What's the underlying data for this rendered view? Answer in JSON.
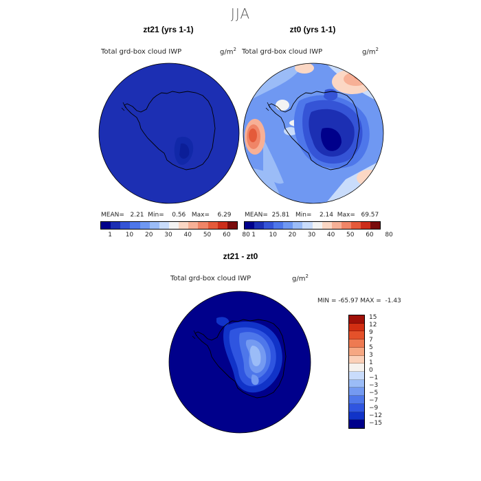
{
  "figure": {
    "season": "JJA"
  },
  "palette_main": [
    "#00008b",
    "#1c2fb3",
    "#3554d6",
    "#4e77ea",
    "#6f98f2",
    "#9bbcf7",
    "#c9dcfb",
    "#f3f3f3",
    "#fbd7c4",
    "#f7b096",
    "#f08567",
    "#e45a3a",
    "#cc2e1a",
    "#7a0c0c"
  ],
  "palette_diff": [
    "#00008b",
    "#1133c8",
    "#2f55e0",
    "#4e77ea",
    "#749af1",
    "#9bbcf7",
    "#c9dcfb",
    "#f6f2ee",
    "#fbd0b8",
    "#f6a782",
    "#ee7a52",
    "#e4512a",
    "#d22e12",
    "#a01008"
  ],
  "chart_data": [
    {
      "type": "heatmap",
      "panel": "zt21",
      "title": "zt21 (yrs 1-1)",
      "variable": "Total grd-box cloud IWP",
      "units": "g/m",
      "units_exp": "2",
      "stats": {
        "mean_label": "MEAN=",
        "mean": "2.21",
        "min_label": "Min=",
        "min": "0.56",
        "max_label": "Max=",
        "max": "6.29"
      },
      "colorbar_ticks": [
        "1",
        "10",
        "20",
        "30",
        "40",
        "50",
        "60",
        "80"
      ]
    },
    {
      "type": "heatmap",
      "panel": "zt0",
      "title": "zt0 (yrs 1-1)",
      "variable": "Total grd-box cloud IWP",
      "units": "g/m",
      "units_exp": "2",
      "stats": {
        "mean_label": "MEAN=",
        "mean": "25.81",
        "min_label": "Min=",
        "min": "2.14",
        "max_label": "Max=",
        "max": "69.57"
      },
      "colorbar_ticks": [
        "1",
        "10",
        "20",
        "30",
        "40",
        "50",
        "60",
        "80"
      ]
    },
    {
      "type": "heatmap",
      "panel": "diff",
      "title": "zt21 - zt0",
      "variable": "Total grd-box cloud IWP",
      "units": "g/m",
      "units_exp": "2",
      "stats_text": "MIN = -65.97 MAX =  -1.43",
      "colorbar_ticks": [
        "15",
        "12",
        "9",
        "7",
        "5",
        "3",
        "1",
        "0",
        "−1",
        "−3",
        "−5",
        "−7",
        "−9",
        "−12",
        "−15"
      ]
    }
  ]
}
